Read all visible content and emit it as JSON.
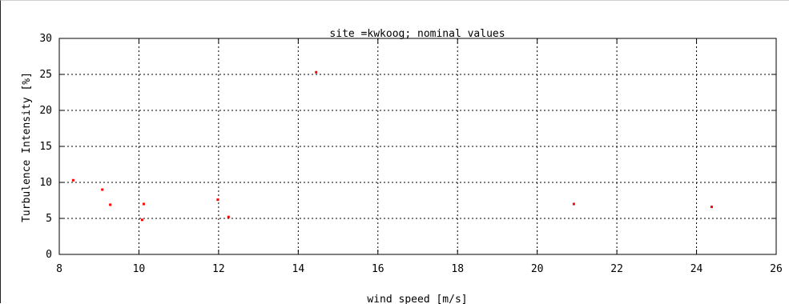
{
  "chart_data": {
    "type": "scatter",
    "title": "site =kwkoog; nominal values",
    "xlabel": "wind speed [m/s]",
    "ylabel": "Turbulence Intensity [%]",
    "xlim": [
      8,
      26
    ],
    "ylim": [
      0,
      30
    ],
    "x_ticks": [
      "8",
      "10",
      "12",
      "14",
      "16",
      "18",
      "20",
      "22",
      "24",
      "26"
    ],
    "y_ticks": [
      "0",
      "5",
      "10",
      "15",
      "20",
      "25",
      "30"
    ],
    "grid": true,
    "marker_color": "#ff0000",
    "points": [
      {
        "x": 8.35,
        "y": 10.3
      },
      {
        "x": 9.08,
        "y": 9.0
      },
      {
        "x": 9.28,
        "y": 6.9
      },
      {
        "x": 10.08,
        "y": 4.8
      },
      {
        "x": 10.12,
        "y": 7.0
      },
      {
        "x": 11.98,
        "y": 7.6
      },
      {
        "x": 12.25,
        "y": 5.2
      },
      {
        "x": 14.45,
        "y": 25.3
      },
      {
        "x": 20.92,
        "y": 7.0
      },
      {
        "x": 24.38,
        "y": 6.6
      }
    ]
  }
}
